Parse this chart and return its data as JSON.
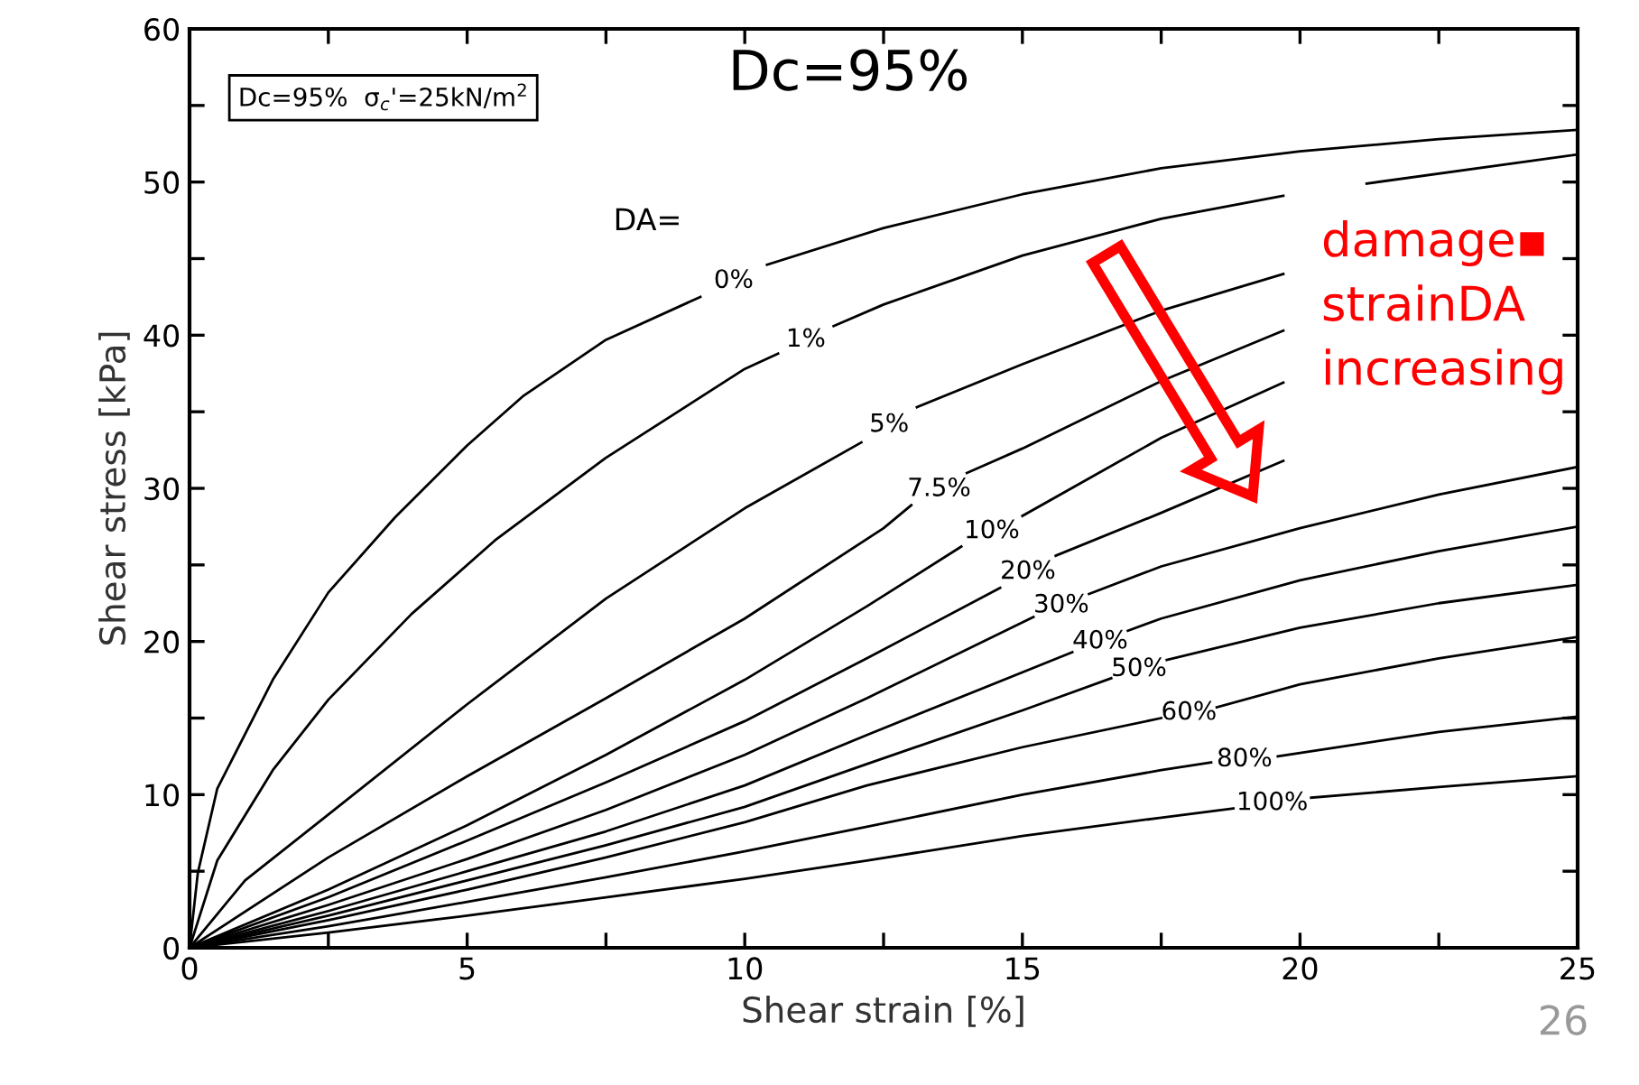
{
  "chart_data": {
    "type": "line",
    "title": "Dc=95%",
    "xlabel": "Shear strain [%]",
    "ylabel": "Shear stress [kPa]",
    "xlim": [
      0,
      25
    ],
    "ylim": [
      0,
      60
    ],
    "xticks": [
      0,
      {
        "value": 2.5,
        "label": null
      },
      5,
      {
        "value": 7.5,
        "label": null
      },
      10,
      {
        "value": 12.5,
        "label": null
      },
      15,
      {
        "value": 17.5,
        "label": null
      },
      20,
      {
        "value": 22.5,
        "label": null
      },
      25
    ],
    "yticks": [
      0,
      {
        "value": 5,
        "label": null
      },
      10,
      {
        "value": 15,
        "label": null
      },
      20,
      {
        "value": 25,
        "label": null
      },
      30,
      {
        "value": 35,
        "label": null
      },
      40,
      {
        "value": 45,
        "label": null
      },
      50,
      {
        "value": 55,
        "label": null
      },
      60
    ],
    "grid": false,
    "legend": false,
    "marker": "none",
    "line_style": "solid",
    "series": [
      {
        "name": "0%",
        "color": "#000000",
        "x": [
          0,
          0.15,
          0.5,
          1.5,
          2.5,
          3.7,
          5,
          6,
          7.5,
          9.2,
          9.8,
          10.4,
          12.5,
          15,
          17.5,
          20,
          22.5,
          25
        ],
        "values": [
          0,
          4.9,
          10.4,
          17.5,
          23.2,
          28.1,
          32.8,
          36.0,
          39.7,
          42.5,
          null,
          44.6,
          47.0,
          49.2,
          50.9,
          52.0,
          52.8,
          53.4
        ]
      },
      {
        "name": "1%",
        "color": "#000000",
        "x": [
          0,
          0.5,
          1.5,
          2.5,
          4,
          5.5,
          7.5,
          10,
          10.6,
          11.1,
          11.6,
          12.5,
          15,
          17.5,
          19.7,
          20.5,
          21.2,
          25
        ],
        "values": [
          0,
          5.7,
          11.6,
          16.2,
          21.8,
          26.6,
          32.0,
          37.8,
          38.8,
          null,
          40.6,
          42.0,
          45.2,
          47.6,
          49.1,
          null,
          49.9,
          51.8
        ]
      },
      {
        "name": "5%",
        "color": "#000000",
        "x": [
          0,
          1,
          2.5,
          5,
          7.5,
          10,
          12.1,
          12.6,
          13.1,
          15,
          17.5,
          19.7
        ],
        "values": [
          0,
          4.4,
          8.7,
          15.9,
          22.8,
          28.7,
          33.0,
          null,
          35.3,
          38.1,
          41.6,
          44.0
        ]
      },
      {
        "name": "7.5%",
        "color": "#000000",
        "x": [
          0,
          2.5,
          5,
          7.5,
          10,
          12.5,
          13.0,
          13.5,
          14.0,
          15,
          17.5,
          19.7
        ],
        "values": [
          0,
          5.9,
          11.2,
          16.3,
          21.5,
          27.4,
          28.9,
          null,
          31.0,
          32.6,
          37.0,
          40.3
        ]
      },
      {
        "name": "10%",
        "color": "#000000",
        "x": [
          0,
          2.5,
          5,
          7.5,
          10,
          12.2,
          13.9,
          14.45,
          15.0,
          17.5,
          19.7
        ],
        "values": [
          0,
          3.8,
          8.0,
          12.6,
          17.5,
          22.3,
          26.2,
          null,
          28.2,
          33.3,
          36.9
        ]
      },
      {
        "name": "20%",
        "color": "#000000",
        "x": [
          0,
          2.5,
          5,
          7.5,
          10,
          12.2,
          14.6,
          15.1,
          15.6,
          17.5,
          19.7
        ],
        "values": [
          0,
          3.3,
          7.0,
          10.8,
          14.8,
          18.9,
          23.5,
          null,
          25.6,
          28.4,
          31.8
        ]
      },
      {
        "name": "30%",
        "color": "#000000",
        "x": [
          0,
          2.5,
          5,
          7.5,
          10,
          12.2,
          15.2,
          15.7,
          16.2,
          17.5,
          20,
          22.5,
          25
        ],
        "values": [
          0,
          2.8,
          5.8,
          9.0,
          12.6,
          16.3,
          21.6,
          null,
          23.1,
          24.9,
          27.4,
          29.6,
          31.4
        ]
      },
      {
        "name": "40%",
        "color": "#000000",
        "x": [
          0,
          2.5,
          5,
          7.5,
          10,
          12.2,
          15.9,
          16.4,
          16.9,
          17.5,
          20,
          22.5,
          25
        ],
        "values": [
          0,
          2.4,
          5.0,
          7.6,
          10.6,
          13.9,
          19.3,
          null,
          20.7,
          21.5,
          24.0,
          25.9,
          27.5
        ]
      },
      {
        "name": "50%",
        "color": "#000000",
        "x": [
          0,
          2.5,
          5,
          7.5,
          10,
          12.2,
          15,
          16.6,
          17.1,
          17.6,
          20,
          22.5,
          25
        ],
        "values": [
          0,
          2.1,
          4.4,
          6.7,
          9.2,
          12.0,
          15.5,
          17.6,
          null,
          18.8,
          20.9,
          22.5,
          23.7
        ]
      },
      {
        "name": "60%",
        "color": "#000000",
        "x": [
          0,
          2.5,
          5,
          7.5,
          10,
          12.2,
          15,
          17.5,
          18.0,
          18.5,
          20,
          22.5,
          25
        ],
        "values": [
          0,
          1.8,
          3.8,
          5.9,
          8.2,
          10.6,
          13.1,
          15.0,
          null,
          15.7,
          17.2,
          18.9,
          20.3
        ]
      },
      {
        "name": "80%",
        "color": "#000000",
        "x": [
          0,
          2.5,
          5,
          7.5,
          10,
          12.2,
          15,
          17.5,
          18.4,
          19.0,
          19.6,
          22.5,
          25
        ],
        "values": [
          0,
          1.4,
          3.0,
          4.6,
          6.3,
          7.9,
          10.0,
          11.6,
          12.1,
          null,
          12.5,
          14.1,
          15.1
        ]
      },
      {
        "name": "100%",
        "color": "#000000",
        "x": [
          0,
          2.5,
          5,
          7.5,
          10,
          12.2,
          15,
          17.5,
          18.8,
          19.5,
          20.2,
          22.5,
          25
        ],
        "values": [
          0,
          1.0,
          2.1,
          3.3,
          4.5,
          5.7,
          7.3,
          8.5,
          9.1,
          null,
          9.8,
          10.5,
          11.2
        ]
      }
    ],
    "annotations": [
      "Dc=95%  σ$_{c}$'=25kN/m$^{2}$",
      "DA=",
      "damage▪\nstrainDA\nincreasing",
      "26"
    ]
  }
}
